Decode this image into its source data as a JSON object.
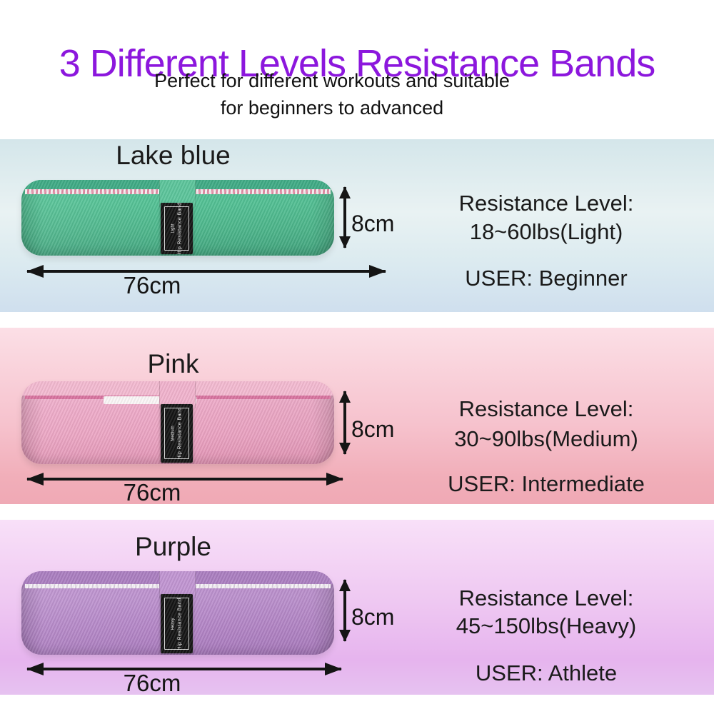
{
  "header": {
    "title": "3 Different Levels Resistance Bands",
    "subtitle_line1": "Perfect for different workouts and suitable",
    "subtitle_line2": "for beginners to advanced",
    "title_color": "#8c17dd"
  },
  "sections": [
    {
      "name": "Lake blue",
      "band_color": "#4fbd92",
      "tag_level": "Light",
      "tag_brand": "Hip Resistance Band",
      "height_label": "8cm",
      "width_label": "76cm",
      "resistance_label": "Resistance Level:",
      "resistance_value": "18~60lbs(Light)",
      "user_label": "USER: Beginner"
    },
    {
      "name": "Pink",
      "band_color": "#eca8c6",
      "tag_level": "Medium",
      "tag_brand": "Hip Resistance Band",
      "height_label": "8cm",
      "width_label": "76cm",
      "resistance_label": "Resistance Level:",
      "resistance_value": "30~90lbs(Medium)",
      "user_label": "USER: Intermediate"
    },
    {
      "name": "Purple",
      "band_color": "#b98ccb",
      "tag_level": "Heavy",
      "tag_brand": "Hip Resistance Band",
      "height_label": "8cm",
      "width_label": "76cm",
      "resistance_label": "Resistance Level:",
      "resistance_value": "45~150lbs(Heavy)",
      "user_label": "USER: Athlete"
    }
  ]
}
